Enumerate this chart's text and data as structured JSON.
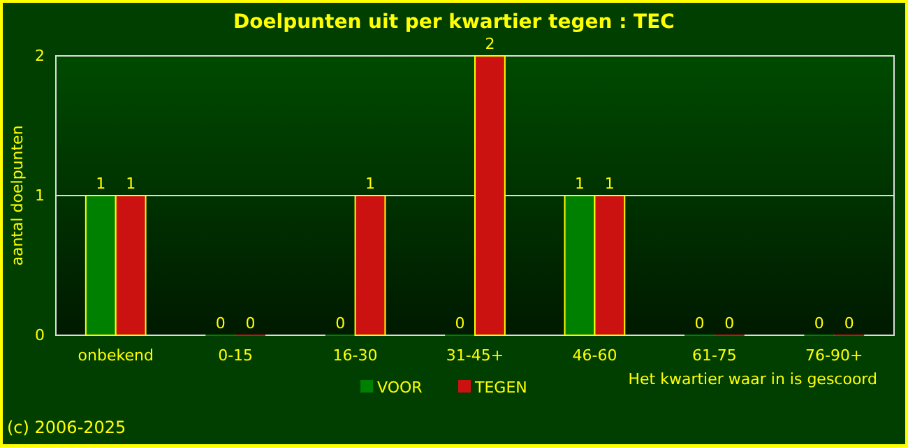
{
  "chart_data": {
    "type": "bar",
    "title": "Doelpunten uit per kwartier tegen : TEC",
    "xlabel": "Het kwartier waar in is gescoord",
    "ylabel": "aantal doelpunten",
    "categories": [
      "onbekend",
      "0-15",
      "16-30",
      "31-45+",
      "46-60",
      "61-75",
      "76-90+"
    ],
    "series": [
      {
        "name": "VOOR",
        "color": "#008000",
        "values": [
          1,
          0,
          0,
          0,
          1,
          0,
          0
        ]
      },
      {
        "name": "TEGEN",
        "color": "#cc1111",
        "values": [
          1,
          0,
          1,
          2,
          1,
          0,
          0
        ]
      }
    ],
    "ylim": [
      0,
      2
    ],
    "yticks": [
      0,
      1,
      2
    ],
    "grid": "y",
    "data_labels": true,
    "legend": "bottom",
    "annotations": [
      "(c) 2006-2025"
    ]
  }
}
